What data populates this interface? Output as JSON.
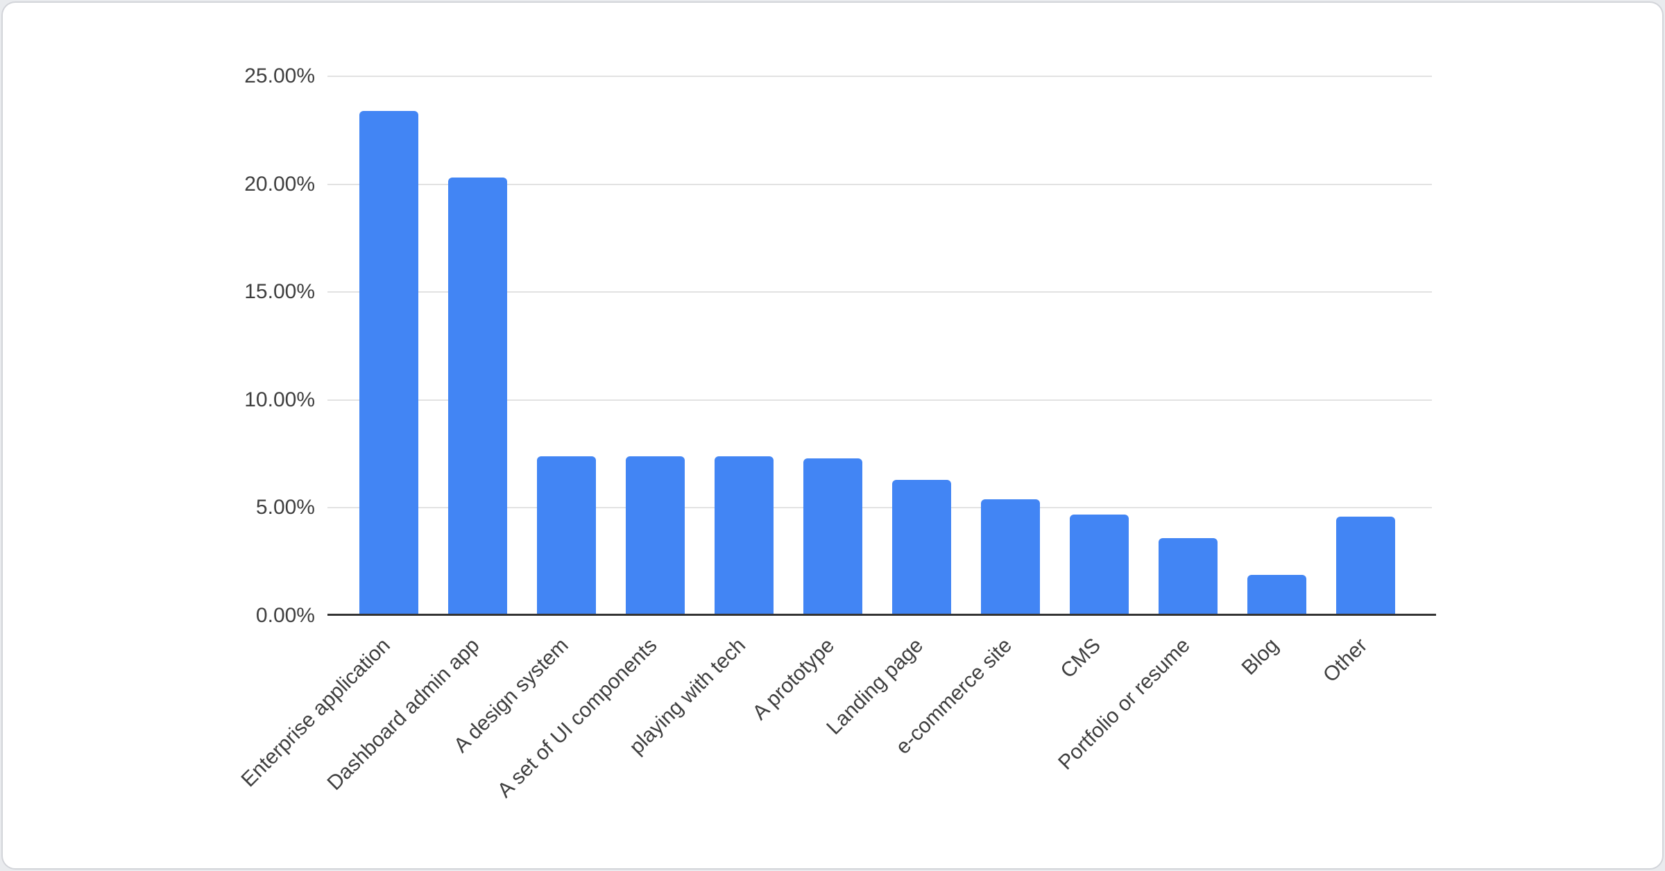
{
  "page": {
    "background_color": "#e9ebee",
    "card_background": "#ffffff",
    "card_border_color": "#d2d4d9"
  },
  "chart_data": {
    "type": "bar",
    "title": "",
    "categories": [
      "Enterprise application",
      "Dashboard admin app",
      "A design system",
      "A set of UI components",
      "playing with tech",
      "A prototype",
      "Landing page",
      "e-commerce site",
      "CMS",
      "Portfolio or resume",
      "Blog",
      "Other"
    ],
    "values": [
      23.4,
      20.3,
      7.4,
      7.4,
      7.4,
      7.3,
      6.3,
      5.4,
      4.7,
      3.6,
      1.9,
      4.6
    ],
    "value_unit": "%",
    "ylim": [
      0,
      25
    ],
    "yticks": [
      {
        "value": 25,
        "label": "25.00%"
      },
      {
        "value": 20,
        "label": "20.00%"
      },
      {
        "value": 15,
        "label": "15.00%"
      },
      {
        "value": 10,
        "label": "10.00%"
      },
      {
        "value": 5,
        "label": "5.00%"
      },
      {
        "value": 0,
        "label": "0.00%"
      }
    ],
    "grid": true,
    "legend": false,
    "x_label_rotation_deg": -45,
    "colors": {
      "bar": "#4285f4",
      "gridline": "#e2e2e2",
      "axis_line": "#333333",
      "tick_text": "#3f3f3f"
    }
  }
}
